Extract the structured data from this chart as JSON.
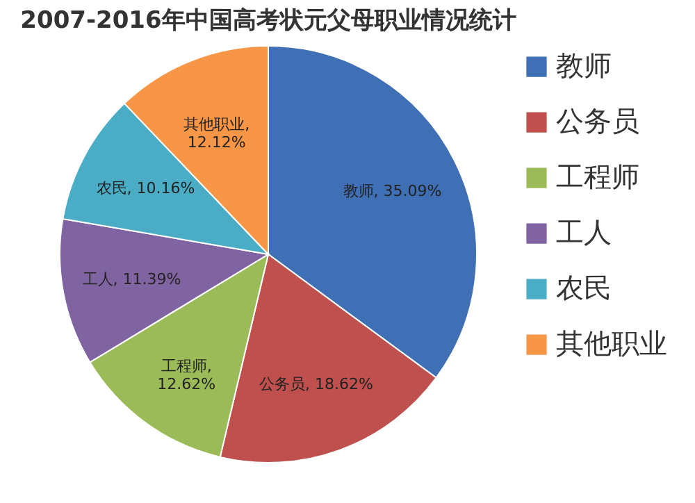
{
  "chart_data": {
    "type": "pie",
    "title": "2007-2016年中国高考状元父母职业情况统计",
    "categories": [
      "教师",
      "公务员",
      "工程师",
      "工人",
      "农民",
      "其他职业"
    ],
    "values": [
      35.09,
      18.62,
      12.62,
      11.39,
      10.16,
      12.12
    ],
    "colors": [
      "#3f6fb5",
      "#c0504d",
      "#9bbb59",
      "#8064a2",
      "#4bacc6",
      "#f79646"
    ],
    "value_labels": [
      "教师, 35.09%",
      "公务员, 18.62%",
      "工程师, 12.62%",
      "工人, 11.39%",
      "农民, 10.16%",
      "其他职业, 12.12%"
    ],
    "legend": "right"
  }
}
